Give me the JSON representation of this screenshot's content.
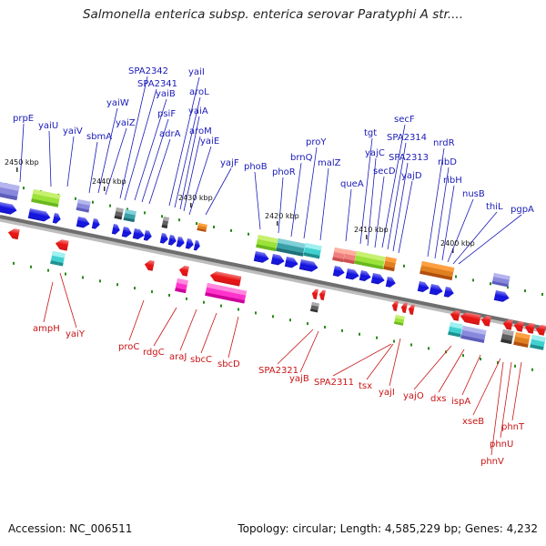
{
  "title": "Salmonella enterica subsp. enterica serovar Paratyphi A str....",
  "footer": {
    "accession": "Accession: NC_006511",
    "summary": "Topology: circular; Length: 4,585,229 bp; Genes: 4,232"
  },
  "colors": {
    "forward_gene": "#1010e0",
    "reverse_gene": "#e81010",
    "top_label": "#1a1ab8",
    "bottom_label": "#c81414",
    "backbone": "#888888",
    "tick_green": "#2a8a1a"
  },
  "kbp_labels": [
    "2450 kbp",
    "2440 kbp",
    "2430 kbp",
    "2420 kbp",
    "2410 kbp",
    "2400 kbp"
  ],
  "top_genes": [
    "prpE",
    "yaiU",
    "yaiV",
    "sbmA",
    "yaiW",
    "yaiZ",
    "SPA2342",
    "SPA2341",
    "yaiB",
    "psiF",
    "adrA",
    "yaiI",
    "aroL",
    "yaiA",
    "aroM",
    "yaiE",
    "yajF",
    "phoB",
    "phoR",
    "brnQ",
    "proY",
    "malZ",
    "queA",
    "tgt",
    "yajC",
    "secD",
    "secF",
    "SPA2314",
    "SPA2313",
    "yajD",
    "nrdR",
    "ribD",
    "ribH",
    "nusB",
    "thiL",
    "pgpA"
  ],
  "bottom_genes": [
    "ampH",
    "yaiY",
    "proC",
    "rdgC",
    "araJ",
    "sbcC",
    "sbcD",
    "SPA2321",
    "yajB",
    "SPA2311",
    "tsx",
    "yajI",
    "yajO",
    "dxs",
    "ispA",
    "xseB",
    "phnV",
    "phnU",
    "phnT"
  ]
}
